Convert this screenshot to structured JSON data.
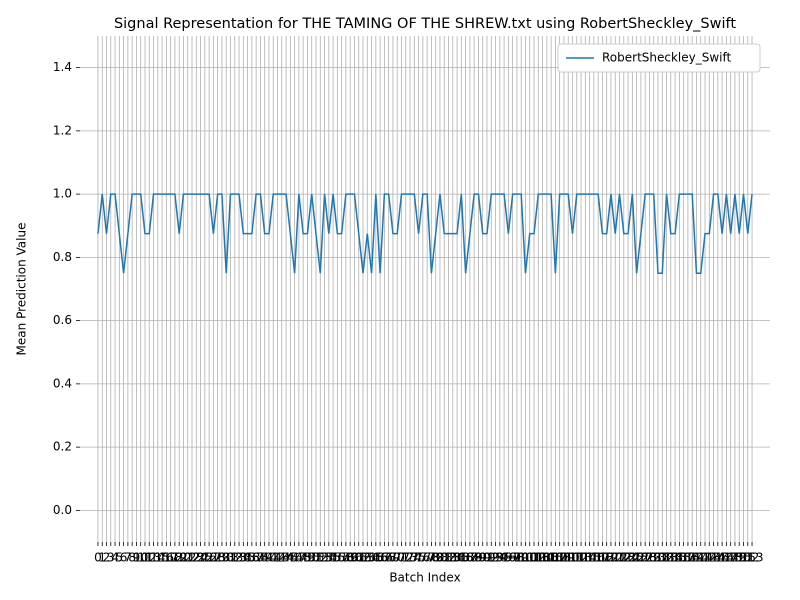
{
  "chart_data": {
    "type": "line",
    "title": "Signal Representation for THE TAMING OF THE SHREW.txt using RobertSheckley_Swift",
    "xlabel": "Batch Index",
    "ylabel": "Mean Prediction Value",
    "x": [
      0,
      1,
      2,
      3,
      4,
      5,
      6,
      7,
      8,
      9,
      10,
      11,
      12,
      13,
      14,
      15,
      16,
      17,
      18,
      19,
      20,
      21,
      22,
      23,
      24,
      25,
      26,
      27,
      28,
      29,
      30,
      31,
      32,
      33,
      34,
      35,
      36,
      37,
      38,
      39,
      40,
      41,
      42,
      43,
      44,
      45,
      46,
      47,
      48,
      49,
      50,
      51,
      52,
      53,
      54,
      55,
      56,
      57,
      58,
      59,
      60,
      61,
      62,
      63,
      64,
      65,
      66,
      67,
      68,
      69,
      70,
      71,
      72,
      73,
      74,
      75,
      76,
      77,
      78,
      79,
      80,
      81,
      82,
      83,
      84,
      85,
      86,
      87,
      88,
      89,
      90,
      91,
      92,
      93,
      94,
      95,
      96,
      97,
      98,
      99,
      100,
      101,
      102,
      103,
      104,
      105,
      106,
      107,
      108,
      109,
      110,
      111,
      112,
      113,
      114,
      115,
      116,
      117,
      118,
      119,
      120,
      121,
      122,
      123,
      124,
      125,
      126,
      127,
      128,
      129,
      130,
      131,
      132,
      133,
      134,
      135,
      136,
      137,
      138,
      139,
      140,
      141,
      142,
      143,
      144,
      145,
      146,
      147,
      148,
      149,
      150,
      151,
      152,
      153
    ],
    "series": [
      {
        "name": "RobertSheckley_Swift",
        "color": "#1f77b4",
        "values": [
          0.875,
          1,
          0.875,
          1,
          1,
          0.875,
          0.75,
          0.875,
          1,
          1,
          1,
          0.875,
          0.875,
          1,
          1,
          1,
          1,
          1,
          1,
          0.875,
          1,
          1,
          1,
          1,
          1,
          1,
          1,
          0.875,
          1,
          1,
          0.75,
          1,
          1,
          1,
          0.875,
          0.875,
          0.875,
          1,
          1,
          0.875,
          0.875,
          1,
          1,
          1,
          1,
          0.875,
          0.75,
          1,
          0.875,
          0.875,
          1,
          0.875,
          0.75,
          1,
          0.875,
          1,
          0.875,
          0.875,
          1,
          1,
          1,
          0.875,
          0.75,
          0.875,
          0.75,
          1,
          0.75,
          1,
          1,
          0.875,
          0.875,
          1,
          1,
          1,
          1,
          0.875,
          1,
          1,
          0.75,
          0.875,
          1,
          0.875,
          0.875,
          0.875,
          0.875,
          1,
          0.75,
          0.875,
          1,
          1,
          0.875,
          0.875,
          1,
          1,
          1,
          1,
          0.875,
          1,
          1,
          1,
          0.75,
          0.875,
          0.875,
          1,
          1,
          1,
          1,
          0.75,
          1,
          1,
          1,
          0.875,
          1,
          1,
          1,
          1,
          1,
          1,
          0.875,
          0.875,
          1,
          0.875,
          1,
          0.875,
          0.875,
          1,
          0.75,
          0.875,
          1,
          1,
          1,
          0.75,
          0.75,
          1,
          0.875,
          0.875,
          1,
          1,
          1,
          1,
          0.75,
          0.75,
          0.875,
          0.875,
          1,
          1,
          0.875,
          1,
          0.875,
          1,
          0.875,
          1,
          0.875,
          1
        ]
      }
    ],
    "xlim": [
      -4.2,
      157.2
    ],
    "xticks": [
      0,
      1,
      2,
      3,
      4,
      5,
      6,
      7,
      8,
      9,
      10,
      11,
      12,
      13,
      14,
      15,
      16,
      17,
      18,
      19,
      20,
      21,
      22,
      23,
      24,
      25,
      26,
      27,
      28,
      29,
      30,
      31,
      32,
      33,
      34,
      35,
      36,
      37,
      38,
      39,
      40,
      41,
      42,
      43,
      44,
      45,
      46,
      47,
      48,
      49,
      50,
      51,
      52,
      53,
      54,
      55,
      56,
      57,
      58,
      59,
      60,
      61,
      62,
      63,
      64,
      65,
      66,
      67,
      68,
      69,
      70,
      71,
      72,
      73,
      74,
      75,
      76,
      77,
      78,
      79,
      80,
      81,
      82,
      83,
      84,
      85,
      86,
      87,
      88,
      89,
      90,
      91,
      92,
      93,
      94,
      95,
      96,
      97,
      98,
      99,
      100,
      101,
      102,
      103,
      104,
      105,
      106,
      107,
      108,
      109,
      110,
      111,
      112,
      113,
      114,
      115,
      116,
      117,
      118,
      119,
      120,
      121,
      122,
      123,
      124,
      125,
      126,
      127,
      128,
      129,
      130,
      131,
      132,
      133,
      134,
      135,
      136,
      137,
      138,
      139,
      140,
      141,
      142,
      143,
      144,
      145,
      146,
      147,
      148,
      149,
      150,
      151,
      152,
      153
    ],
    "ylim": [
      -0.1,
      1.5
    ],
    "yticks": [
      {
        "value": 0,
        "label": "0.0"
      },
      0.2,
      0.4,
      0.6,
      0.8,
      {
        "value": 1,
        "label": "1.0"
      },
      1.2,
      1.4
    ],
    "grid": true,
    "legend": "upper right"
  }
}
